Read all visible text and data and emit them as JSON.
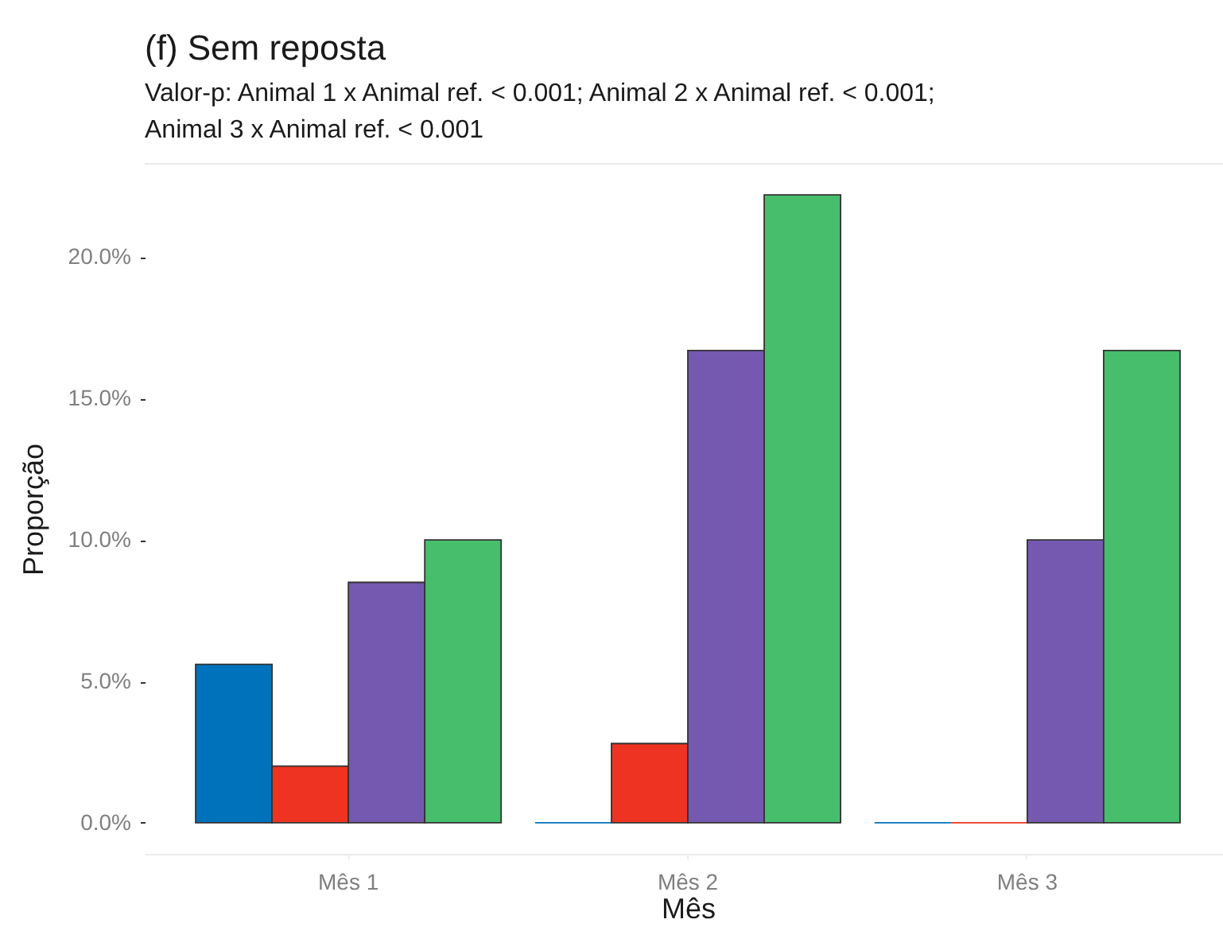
{
  "chart_data": {
    "type": "bar",
    "title": "(f) Sem reposta",
    "subtitle": "Valor-p: Animal 1 x Animal ref. < 0.001; Animal 2 x Animal ref. < 0.001; Animal 3 x Animal ref. < 0.001",
    "xlabel": "Mês",
    "ylabel": "Proporção",
    "categories": [
      "Mês 1",
      "Mês 2",
      "Mês 3"
    ],
    "series": [
      {
        "color": "#0072bc",
        "values": [
          5.6,
          0,
          0
        ]
      },
      {
        "color": "#ef3322",
        "values": [
          2.0,
          2.8,
          0
        ]
      },
      {
        "color": "#7559b1",
        "values": [
          8.5,
          16.7,
          10.0
        ]
      },
      {
        "color": "#47be6b",
        "values": [
          10.0,
          22.2,
          16.7
        ]
      }
    ],
    "ylim": [
      -1.1,
      23.3
    ],
    "yticks": [
      {
        "value": 0,
        "label": "0.0%"
      },
      {
        "value": 5,
        "label": "5.0%"
      },
      {
        "value": 10,
        "label": "10.0%"
      },
      {
        "value": 15,
        "label": "15.0%"
      },
      {
        "value": 20,
        "label": "20.0%"
      }
    ],
    "grid": false,
    "legend": false
  }
}
